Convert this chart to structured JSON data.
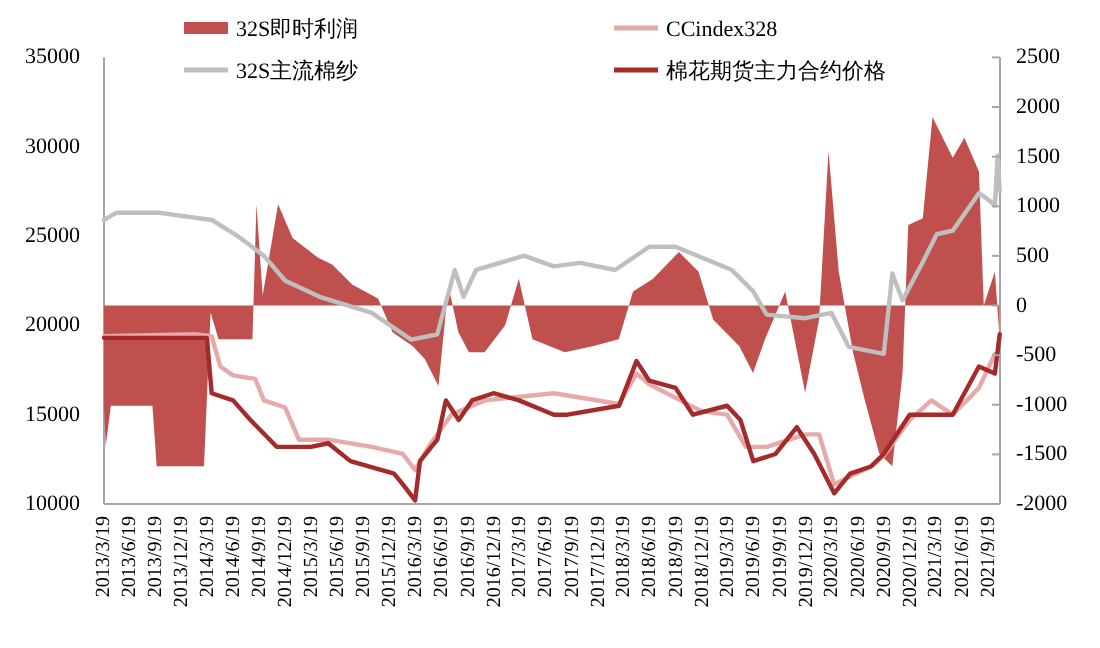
{
  "chart_data": {
    "type": "line",
    "legend": "top",
    "grid": false,
    "xlim": [
      "2013-03-19",
      "2021-10-28"
    ],
    "xticks": [
      {
        "value": "2013-03-19",
        "label": "2013/3/19"
      },
      {
        "value": "2013-06-19",
        "label": "2013/6/19"
      },
      {
        "value": "2013-09-19",
        "label": "2013/9/19"
      },
      {
        "value": "2013-12-19",
        "label": "2013/12/19"
      },
      {
        "value": "2014-03-19",
        "label": "2014/3/19"
      },
      {
        "value": "2014-06-19",
        "label": "2014/6/19"
      },
      {
        "value": "2014-09-19",
        "label": "2014/9/19"
      },
      {
        "value": "2014-12-19",
        "label": "2014/12/19"
      },
      {
        "value": "2015-03-19",
        "label": "2015/3/19"
      },
      {
        "value": "2015-06-19",
        "label": "2015/6/19"
      },
      {
        "value": "2015-09-19",
        "label": "2015/9/19"
      },
      {
        "value": "2015-12-19",
        "label": "2015/12/19"
      },
      {
        "value": "2016-03-19",
        "label": "2016/3/19"
      },
      {
        "value": "2016-06-19",
        "label": "2016/6/19"
      },
      {
        "value": "2016-09-19",
        "label": "2016/9/19"
      },
      {
        "value": "2016-12-19",
        "label": "2016/12/19"
      },
      {
        "value": "2017-03-19",
        "label": "2017/3/19"
      },
      {
        "value": "2017-06-19",
        "label": "2017/6/19"
      },
      {
        "value": "2017-09-19",
        "label": "2017/9/19"
      },
      {
        "value": "2017-12-19",
        "label": "2017/12/19"
      },
      {
        "value": "2018-03-19",
        "label": "2018/3/19"
      },
      {
        "value": "2018-06-19",
        "label": "2018/6/19"
      },
      {
        "value": "2018-09-19",
        "label": "2018/9/19"
      },
      {
        "value": "2018-12-19",
        "label": "2018/12/19"
      },
      {
        "value": "2019-03-19",
        "label": "2019/3/19"
      },
      {
        "value": "2019-06-19",
        "label": "2019/6/19"
      },
      {
        "value": "2019-09-19",
        "label": "2019/9/19"
      },
      {
        "value": "2019-12-19",
        "label": "2019/12/19"
      },
      {
        "value": "2020-03-19",
        "label": "2020/3/19"
      },
      {
        "value": "2020-06-19",
        "label": "2020/6/19"
      },
      {
        "value": "2020-09-19",
        "label": "2020/9/19"
      },
      {
        "value": "2020-12-19",
        "label": "2020/12/19"
      },
      {
        "value": "2021-03-19",
        "label": "2021/3/19"
      },
      {
        "value": "2021-06-19",
        "label": "2021/6/19"
      },
      {
        "value": "2021-09-19",
        "label": "2021/9/19"
      }
    ],
    "ylim": [
      10000,
      35000
    ],
    "yticks": [
      10000,
      15000,
      20000,
      25000,
      30000,
      35000
    ],
    "y2lim": [
      -2000,
      2500
    ],
    "y2ticks": [
      -2000,
      -1500,
      -1000,
      -500,
      0,
      500,
      1000,
      1500,
      2000,
      2500
    ],
    "series": [
      {
        "name": "32S即时利润",
        "type": "area",
        "axis": "y2",
        "color": "#c0504d",
        "x": [
          "2013-03-19",
          "2013-03-25",
          "2013-04-12",
          "2013-09-05",
          "2013-09-20",
          "2014-03-05",
          "2014-03-28",
          "2014-04-25",
          "2014-08-22",
          "2014-09-05",
          "2014-09-27",
          "2014-11-20",
          "2015-01-10",
          "2015-04-10",
          "2015-05-30",
          "2015-08-08",
          "2015-11-06",
          "2015-12-27",
          "2016-03-07",
          "2016-04-18",
          "2016-06-05",
          "2016-07-10",
          "2016-08-14",
          "2016-09-20",
          "2016-11-14",
          "2017-01-25",
          "2017-03-14",
          "2017-05-01",
          "2017-08-22",
          "2017-11-28",
          "2018-02-28",
          "2018-04-19",
          "2018-06-28",
          "2018-09-27",
          "2018-12-05",
          "2019-01-25",
          "2019-04-27",
          "2019-06-14",
          "2019-07-26",
          "2019-10-05",
          "2019-12-14",
          "2020-02-01",
          "2020-03-05",
          "2020-04-10",
          "2020-05-30",
          "2020-07-10",
          "2020-08-30",
          "2020-10-15",
          "2020-11-20",
          "2020-12-10",
          "2021-01-30",
          "2021-03-05",
          "2021-05-15",
          "2021-06-25",
          "2021-08-15",
          "2021-09-01",
          "2021-10-10",
          "2021-10-25"
        ],
        "values": [
          -1010,
          -1420,
          -1010,
          -1010,
          -1620,
          -1620,
          -70,
          -340,
          -340,
          1020,
          100,
          1020,
          680,
          480,
          410,
          210,
          70,
          -270,
          -410,
          -540,
          -810,
          200,
          -270,
          -470,
          -470,
          -200,
          270,
          -340,
          -470,
          -410,
          -340,
          140,
          270,
          540,
          340,
          -140,
          -410,
          -680,
          -340,
          140,
          -880,
          -140,
          1560,
          340,
          -470,
          -950,
          -1490,
          -1620,
          -680,
          810,
          880,
          1900,
          1490,
          1690,
          1350,
          0,
          340,
          -270
        ]
      },
      {
        "name": "CCindex328",
        "color": "#e6aaaa",
        "x": [
          "2013-03-19",
          "2014-02-01",
          "2014-04-01",
          "2014-05-01",
          "2014-06-15",
          "2014-09-01",
          "2014-10-01",
          "2014-12-15",
          "2015-02-01",
          "2015-05-15",
          "2015-10-15",
          "2016-02-01",
          "2016-03-15",
          "2016-05-01",
          "2016-07-20",
          "2016-11-15",
          "2017-07-15",
          "2018-03-01",
          "2018-05-01",
          "2018-06-15",
          "2018-12-15",
          "2019-03-15",
          "2019-05-20",
          "2019-08-01",
          "2019-12-15",
          "2020-02-01",
          "2020-03-25",
          "2020-08-01",
          "2020-09-15",
          "2020-12-15",
          "2021-03-01",
          "2021-05-15",
          "2021-08-15",
          "2021-10-10"
        ],
        "values": [
          19400,
          19500,
          19400,
          17700,
          17200,
          17000,
          15800,
          15400,
          13600,
          13600,
          13200,
          12800,
          11900,
          13200,
          15000,
          15800,
          16200,
          15600,
          17300,
          16700,
          15200,
          15000,
          13200,
          13200,
          13900,
          13900,
          11100,
          12100,
          12700,
          14700,
          15800,
          15000,
          16500,
          18400
        ]
      },
      {
        "name": "32S主流棉纱",
        "color": "#bfbfbf",
        "x": [
          "2013-03-19",
          "2013-05-01",
          "2013-10-01",
          "2014-04-01",
          "2014-07-01",
          "2014-10-01",
          "2014-12-15",
          "2015-04-15",
          "2015-10-15",
          "2016-03-01",
          "2016-06-01",
          "2016-08-01",
          "2016-09-01",
          "2016-10-15",
          "2017-04-01",
          "2017-07-15",
          "2017-10-15",
          "2018-02-15",
          "2018-06-15",
          "2018-09-15",
          "2019-04-01",
          "2019-06-15",
          "2019-08-01",
          "2019-12-15",
          "2020-03-15",
          "2020-05-15",
          "2020-09-15",
          "2020-10-15",
          "2020-11-20",
          "2021-02-01",
          "2021-03-20",
          "2021-05-15",
          "2021-08-15",
          "2021-09-20",
          "2021-10-10",
          "2021-10-20",
          "2021-10-27"
        ],
        "values": [
          25900,
          26300,
          26300,
          25900,
          25000,
          23900,
          22500,
          21600,
          20700,
          19200,
          19500,
          23100,
          21600,
          23100,
          23900,
          23300,
          23500,
          23100,
          24400,
          24400,
          23100,
          21900,
          20600,
          20400,
          20700,
          18800,
          18400,
          22900,
          21400,
          23600,
          25100,
          25300,
          27400,
          27000,
          26700,
          29500,
          27500
        ]
      },
      {
        "name": "棉花期货主力合约价格",
        "color": "#a52a2a",
        "x": [
          "2013-03-19",
          "2014-03-15",
          "2014-04-01",
          "2014-06-15",
          "2014-08-15",
          "2014-11-15",
          "2015-03-15",
          "2015-05-15",
          "2015-08-01",
          "2016-01-01",
          "2016-02-01",
          "2016-03-15",
          "2016-04-01",
          "2016-06-01",
          "2016-07-01",
          "2016-08-15",
          "2016-10-01",
          "2016-12-15",
          "2017-03-15",
          "2017-07-15",
          "2017-09-01",
          "2018-03-01",
          "2018-05-01",
          "2018-06-15",
          "2018-09-15",
          "2018-11-15",
          "2019-03-15",
          "2019-05-01",
          "2019-06-15",
          "2019-09-01",
          "2019-11-15",
          "2020-01-15",
          "2020-03-25",
          "2020-05-20",
          "2020-08-01",
          "2020-09-15",
          "2020-12-15",
          "2021-03-15",
          "2021-05-15",
          "2021-08-15",
          "2021-10-10",
          "2021-10-27"
        ],
        "values": [
          19300,
          19300,
          16200,
          15800,
          14700,
          13200,
          13200,
          13400,
          12400,
          11700,
          11100,
          10200,
          12400,
          13600,
          15800,
          14700,
          15800,
          16200,
          15800,
          15000,
          15000,
          15500,
          18000,
          16900,
          16500,
          15000,
          15500,
          14700,
          12400,
          12800,
          14300,
          12800,
          10600,
          11700,
          12100,
          12800,
          15000,
          15000,
          15000,
          17700,
          17300,
          19500
        ]
      }
    ]
  }
}
